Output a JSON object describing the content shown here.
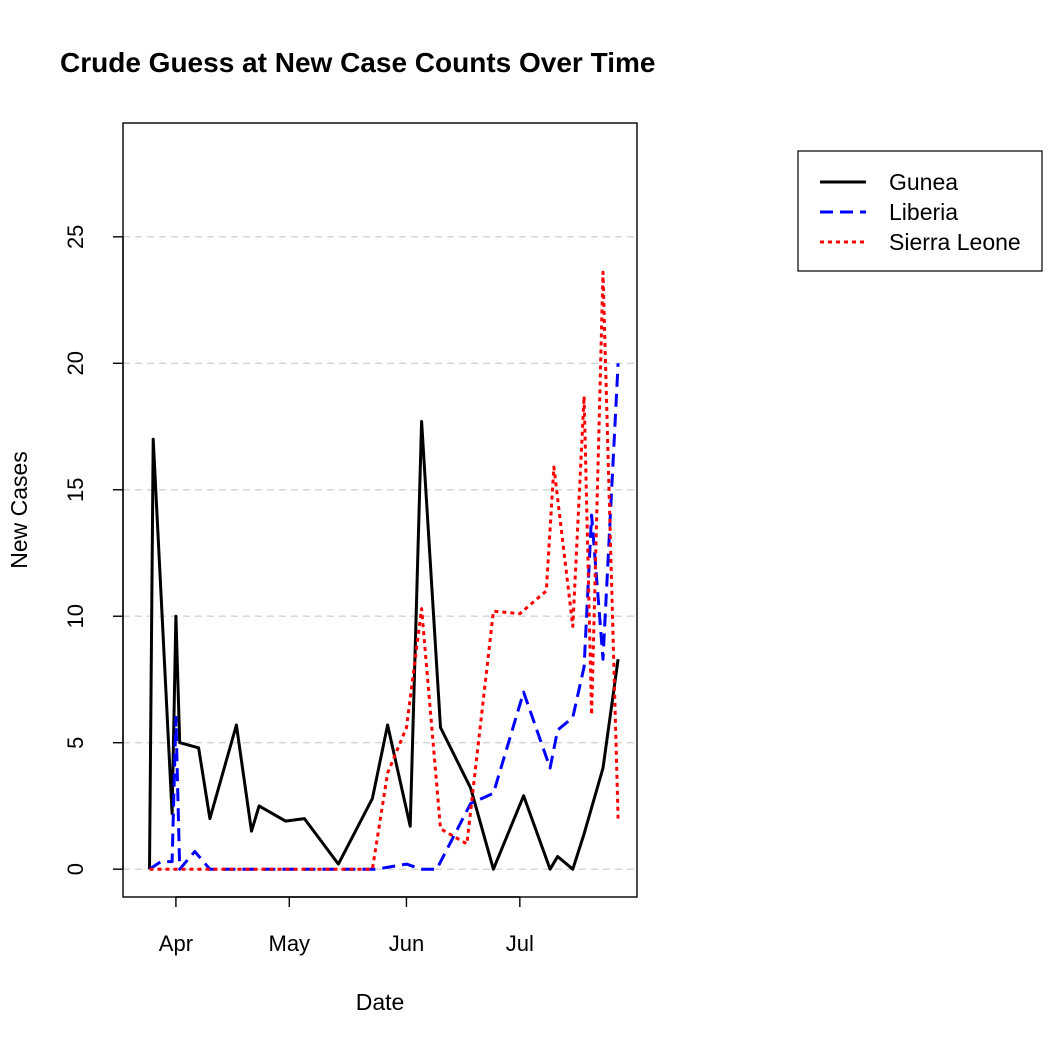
{
  "chart_data": {
    "type": "line",
    "title": "Crude Guess at New Case Counts Over Time",
    "xlabel": "Date",
    "ylabel": "New Cases",
    "xlim": [
      "2014-03-18",
      "2014-08-01"
    ],
    "ylim": [
      -1.1,
      29.5
    ],
    "y_ticks": [
      0,
      5,
      10,
      15,
      20,
      25
    ],
    "x_ticks": [
      {
        "date": "2014-04-01",
        "label": "Apr"
      },
      {
        "date": "2014-05-01",
        "label": "May"
      },
      {
        "date": "2014-06-01",
        "label": "Jun"
      },
      {
        "date": "2014-07-01",
        "label": "Jul"
      }
    ],
    "grid": {
      "horizontal": true,
      "color": "#d3d3d3",
      "dash": "dashed"
    },
    "legend": {
      "placement": "right-outside-top"
    },
    "series": [
      {
        "name": "Gunea",
        "color": "#000000",
        "dash": "solid",
        "points": [
          [
            "2014-03-25",
            0
          ],
          [
            "2014-03-26",
            17
          ],
          [
            "2014-03-31",
            2.2
          ],
          [
            "2014-04-01",
            10
          ],
          [
            "2014-04-02",
            5
          ],
          [
            "2014-04-07",
            4.8
          ],
          [
            "2014-04-10",
            2
          ],
          [
            "2014-04-17",
            5.7
          ],
          [
            "2014-04-21",
            1.5
          ],
          [
            "2014-04-23",
            2.5
          ],
          [
            "2014-04-30",
            1.9
          ],
          [
            "2014-05-05",
            2
          ],
          [
            "2014-05-14",
            0.2
          ],
          [
            "2014-05-23",
            2.8
          ],
          [
            "2014-05-27",
            5.7
          ],
          [
            "2014-06-02",
            1.7
          ],
          [
            "2014-06-05",
            17.7
          ],
          [
            "2014-06-10",
            5.6
          ],
          [
            "2014-06-18",
            3.2
          ],
          [
            "2014-06-24",
            0
          ],
          [
            "2014-07-02",
            2.9
          ],
          [
            "2014-07-09",
            0
          ],
          [
            "2014-07-11",
            0.5
          ],
          [
            "2014-07-15",
            0
          ],
          [
            "2014-07-18",
            1.4
          ],
          [
            "2014-07-23",
            4
          ],
          [
            "2014-07-27",
            8.3
          ]
        ]
      },
      {
        "name": "Liberia",
        "color": "#0000ff",
        "dash": "dashed",
        "points": [
          [
            "2014-03-25",
            0
          ],
          [
            "2014-03-28",
            0.3
          ],
          [
            "2014-03-31",
            0.3
          ],
          [
            "2014-04-01",
            6
          ],
          [
            "2014-04-02",
            0
          ],
          [
            "2014-04-06",
            0.7
          ],
          [
            "2014-04-10",
            0
          ],
          [
            "2014-05-24",
            0
          ],
          [
            "2014-06-01",
            0.2
          ],
          [
            "2014-06-05",
            0
          ],
          [
            "2014-06-09",
            0
          ],
          [
            "2014-06-18",
            2.6
          ],
          [
            "2014-06-24",
            3
          ],
          [
            "2014-07-02",
            7
          ],
          [
            "2014-07-09",
            4
          ],
          [
            "2014-07-11",
            5.5
          ],
          [
            "2014-07-15",
            6
          ],
          [
            "2014-07-18",
            8
          ],
          [
            "2014-07-20",
            14
          ],
          [
            "2014-07-23",
            8.3
          ],
          [
            "2014-07-27",
            20
          ]
        ]
      },
      {
        "name": "Sierra Leone",
        "color": "#ff0000",
        "dash": "dotted",
        "points": [
          [
            "2014-03-25",
            0
          ],
          [
            "2014-05-23",
            0
          ],
          [
            "2014-05-27",
            3.8
          ],
          [
            "2014-06-01",
            5.6
          ],
          [
            "2014-06-05",
            10.3
          ],
          [
            "2014-06-10",
            1.6
          ],
          [
            "2014-06-17",
            1
          ],
          [
            "2014-06-24",
            10.2
          ],
          [
            "2014-07-01",
            10.1
          ],
          [
            "2014-07-08",
            11
          ],
          [
            "2014-07-10",
            15.9
          ],
          [
            "2014-07-15",
            9.6
          ],
          [
            "2014-07-18",
            18.7
          ],
          [
            "2014-07-20",
            6.1
          ],
          [
            "2014-07-23",
            23.6
          ],
          [
            "2014-07-27",
            2
          ]
        ]
      }
    ]
  }
}
